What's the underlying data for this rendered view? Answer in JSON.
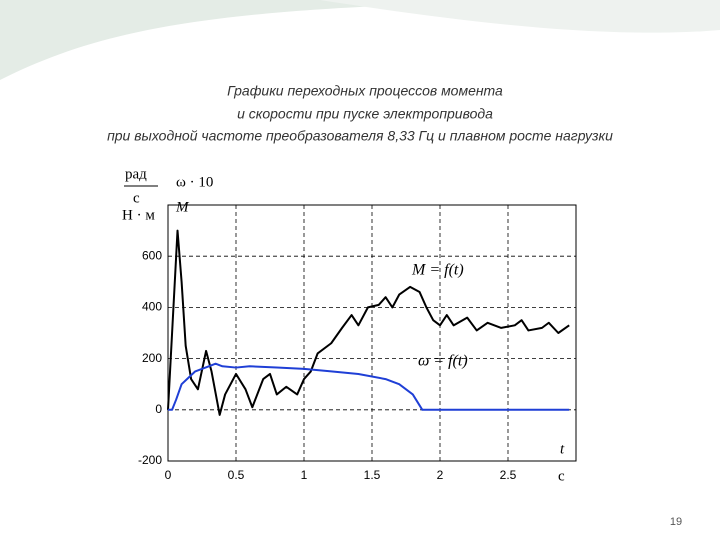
{
  "title_lines": [
    "Графики переходных процессов момента",
    "и скорости  при пуске электропривода",
    "при выходной частоте преобразователя  8,33 Гц и плавном росте нагрузки"
  ],
  "page_number": "19",
  "chart_data": {
    "type": "line",
    "y_unit_labels": [
      "рад",
      "с",
      "Н · м"
    ],
    "series_axis_labels": [
      "ω · 10",
      "M"
    ],
    "x_unit_labels": [
      "t",
      "с"
    ],
    "xlim": [
      0,
      3
    ],
    "xticks": [
      0,
      0.5,
      1,
      1.5,
      2,
      2.5
    ],
    "ylim": [
      -200,
      800
    ],
    "yticks": [
      -200,
      0,
      200,
      400,
      600
    ],
    "grid": true,
    "series": [
      {
        "name": "M = f(t)",
        "color": "#000000",
        "x": [
          0,
          0.03,
          0.07,
          0.1,
          0.13,
          0.17,
          0.22,
          0.28,
          0.32,
          0.38,
          0.42,
          0.5,
          0.57,
          0.62,
          0.7,
          0.75,
          0.8,
          0.87,
          0.95,
          1.0,
          1.05,
          1.1,
          1.2,
          1.28,
          1.35,
          1.4,
          1.47,
          1.55,
          1.6,
          1.65,
          1.7,
          1.78,
          1.85,
          1.9,
          1.95,
          2.0,
          2.05,
          2.1,
          2.2,
          2.27,
          2.35,
          2.45,
          2.55,
          2.6,
          2.65,
          2.75,
          2.8,
          2.87,
          2.95
        ],
        "values": [
          0,
          300,
          700,
          500,
          250,
          120,
          80,
          230,
          150,
          -20,
          60,
          140,
          80,
          10,
          120,
          140,
          60,
          90,
          60,
          120,
          150,
          220,
          260,
          320,
          370,
          330,
          400,
          410,
          440,
          400,
          450,
          480,
          460,
          400,
          350,
          330,
          370,
          330,
          360,
          310,
          340,
          320,
          330,
          350,
          310,
          320,
          340,
          300,
          330
        ]
      },
      {
        "name": "ω = f(t)",
        "color": "#1f3fd6",
        "x": [
          0,
          0.03,
          0.06,
          0.1,
          0.2,
          0.3,
          0.35,
          0.4,
          0.5,
          0.6,
          0.8,
          1.0,
          1.2,
          1.4,
          1.6,
          1.7,
          1.8,
          1.87,
          2.95
        ],
        "values": [
          0,
          0,
          40,
          100,
          150,
          170,
          180,
          170,
          165,
          170,
          165,
          160,
          150,
          140,
          120,
          100,
          60,
          0,
          0
        ]
      }
    ]
  }
}
